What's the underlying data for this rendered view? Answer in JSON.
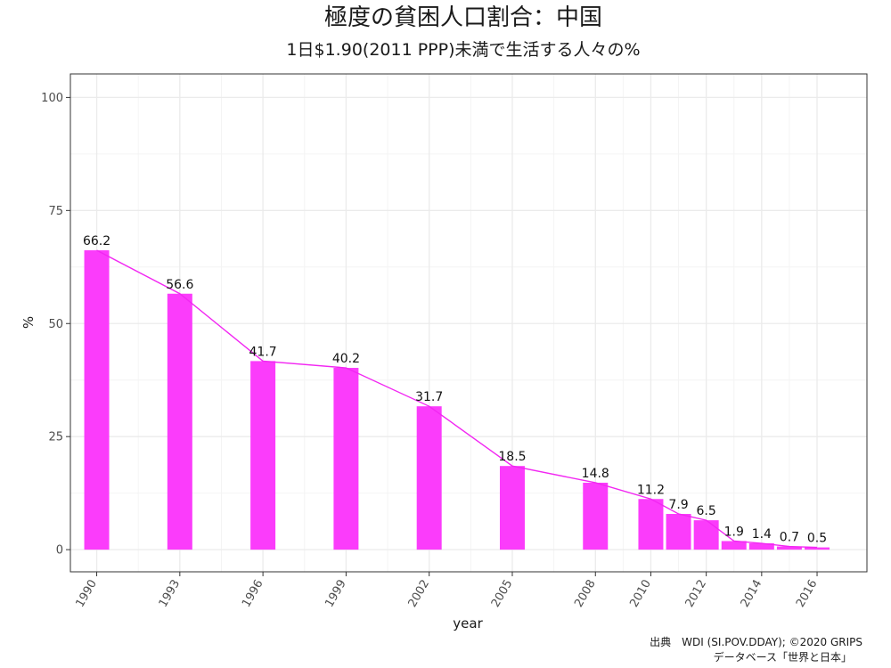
{
  "chart_data": {
    "type": "bar",
    "title": "極度の貧困人口割合：中国",
    "subtitle": "1日$1.90(2011 PPP)未満で生活する人々の%",
    "xlabel": "year",
    "ylabel": "%",
    "x": [
      1990,
      1993,
      1996,
      1999,
      2002,
      2005,
      2008,
      2010,
      2011,
      2012,
      2013,
      2014,
      2015,
      2016
    ],
    "values": [
      66.2,
      56.6,
      41.7,
      40.2,
      31.7,
      18.5,
      14.8,
      11.2,
      7.9,
      6.5,
      1.9,
      1.4,
      0.7,
      0.5
    ],
    "labels": [
      "66.2",
      "56.6",
      "41.7",
      "40.2",
      "31.7",
      "18.5",
      "14.8",
      "11.2",
      "7.9",
      "6.5",
      "1.9",
      "1.4",
      "0.7",
      "0.5"
    ],
    "xticks": [
      1990,
      1993,
      1996,
      1999,
      2002,
      2005,
      2008,
      2010,
      2012,
      2014,
      2016
    ],
    "yticks": [
      0,
      25,
      50,
      75,
      100
    ],
    "ylim": [
      0,
      100
    ],
    "grid": true,
    "overlay_line": true
  },
  "colors": {
    "bar": "#fb3cfb",
    "line": "#f227f2",
    "grid": "#ebebeb",
    "panel_border": "#333333"
  },
  "source": {
    "line1": "出典　WDI (SI.POV.DDAY); ©2020 GRIPS",
    "line2": "データベース「世界と日本」"
  }
}
